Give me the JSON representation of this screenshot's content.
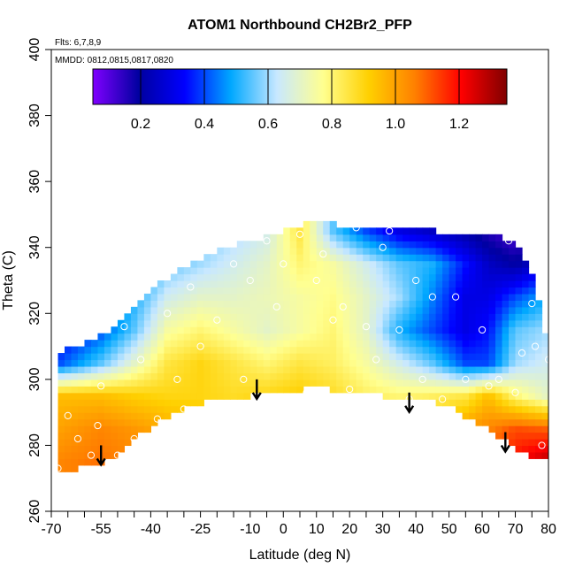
{
  "header": {
    "title": "ATOM1 Northbound CH2Br2_PFP",
    "flights": "Flts: 6,7,8,9",
    "dates": "MMDD: 0812,0815,0817,0820"
  },
  "colorbar": {
    "ticks": [
      "0.2",
      "0.4",
      "0.6",
      "0.8",
      "1.0",
      "1.2"
    ],
    "stops": [
      "#8000ff",
      "#0000a0",
      "#0000ff",
      "#00a8ff",
      "#c8e8ff",
      "#ffff90",
      "#ffd000",
      "#ff8000",
      "#ff0000",
      "#800000"
    ]
  },
  "chart_data": {
    "type": "heatmap",
    "title": "ATOM1 Northbound CH2Br2_PFP",
    "xlabel": "Latitude (deg N)",
    "ylabel": "Theta (C)",
    "xlim": [
      -70,
      80
    ],
    "ylim": [
      260,
      400
    ],
    "xticks": [
      "-70",
      "-55",
      "-40",
      "-25",
      "-10",
      "0",
      "10",
      "20",
      "30",
      "40",
      "50",
      "60",
      "70",
      "80"
    ],
    "yticks": [
      "260",
      "280",
      "300",
      "320",
      "340",
      "360",
      "380",
      "400"
    ],
    "color_range": [
      0.05,
      1.35
    ],
    "lower_boundary": [
      [
        -68,
        273
      ],
      [
        -62,
        273
      ],
      [
        -55,
        275
      ],
      [
        -50,
        277
      ],
      [
        -45,
        282
      ],
      [
        -38,
        287
      ],
      [
        -30,
        291
      ],
      [
        -20,
        294
      ],
      [
        -10,
        295
      ],
      [
        0,
        296
      ],
      [
        10,
        298
      ],
      [
        20,
        296
      ],
      [
        30,
        295
      ],
      [
        40,
        295
      ],
      [
        50,
        292
      ],
      [
        60,
        286
      ],
      [
        70,
        279
      ],
      [
        75,
        277
      ],
      [
        80,
        277
      ]
    ],
    "upper_boundary": [
      [
        -68,
        308
      ],
      [
        -60,
        311
      ],
      [
        -50,
        316
      ],
      [
        -45,
        321
      ],
      [
        -40,
        327
      ],
      [
        -30,
        334
      ],
      [
        -20,
        339
      ],
      [
        -10,
        342
      ],
      [
        0,
        345
      ],
      [
        10,
        348
      ],
      [
        20,
        346
      ],
      [
        30,
        346
      ],
      [
        40,
        346
      ],
      [
        50,
        344
      ],
      [
        60,
        344
      ],
      [
        70,
        342
      ],
      [
        75,
        332
      ],
      [
        78,
        320
      ],
      [
        80,
        306
      ]
    ],
    "grid_values": {
      "x": [
        -68,
        -55,
        -45,
        -35,
        -25,
        -15,
        -5,
        5,
        15,
        25,
        35,
        45,
        55,
        62,
        70,
        80
      ],
      "y": [
        275,
        285,
        295,
        305,
        315,
        325,
        335,
        345
      ],
      "z": [
        [
          1.05,
          1.08,
          1.05,
          1.0,
          0.98,
          0.95,
          0.95,
          0.95,
          0.95,
          0.95,
          0.95,
          0.98,
          1.05,
          1.1,
          1.2,
          1.3
        ],
        [
          1.0,
          1.05,
          1.02,
          0.98,
          0.95,
          0.92,
          0.92,
          0.92,
          0.92,
          0.9,
          0.9,
          0.95,
          1.02,
          1.05,
          1.12,
          1.1
        ],
        [
          0.95,
          0.95,
          0.92,
          0.9,
          0.9,
          0.88,
          0.9,
          0.92,
          0.88,
          0.82,
          0.8,
          0.82,
          0.85,
          0.95,
          0.8,
          0.7
        ],
        [
          0.4,
          0.55,
          0.7,
          0.85,
          0.9,
          0.85,
          0.8,
          0.85,
          0.82,
          0.75,
          0.65,
          0.55,
          0.4,
          0.4,
          0.6,
          0.65
        ],
        [
          0.3,
          0.4,
          0.55,
          0.75,
          0.8,
          0.75,
          0.7,
          0.75,
          0.8,
          0.7,
          0.5,
          0.4,
          0.3,
          0.35,
          0.55,
          0.6
        ],
        [
          0.25,
          0.35,
          0.5,
          0.65,
          0.7,
          0.7,
          0.72,
          0.75,
          0.78,
          0.7,
          0.6,
          0.45,
          0.3,
          0.3,
          0.4,
          0.5
        ],
        [
          0.2,
          0.3,
          0.45,
          0.55,
          0.6,
          0.65,
          0.7,
          0.8,
          0.75,
          0.65,
          0.55,
          0.5,
          0.35,
          0.25,
          0.2,
          0.3
        ],
        [
          0.2,
          0.3,
          0.4,
          0.5,
          0.55,
          0.6,
          0.65,
          0.85,
          0.55,
          0.4,
          0.3,
          0.25,
          0.2,
          0.15,
          0.1,
          0.2
        ]
      ]
    },
    "sample_points": [
      [
        -68,
        273
      ],
      [
        -65,
        289
      ],
      [
        -62,
        282
      ],
      [
        -58,
        277
      ],
      [
        -56,
        286
      ],
      [
        -55,
        298
      ],
      [
        -50,
        277
      ],
      [
        -48,
        316
      ],
      [
        -45,
        282
      ],
      [
        -43,
        306
      ],
      [
        -38,
        288
      ],
      [
        -35,
        320
      ],
      [
        -32,
        300
      ],
      [
        -30,
        291
      ],
      [
        -28,
        328
      ],
      [
        -25,
        310
      ],
      [
        -20,
        318
      ],
      [
        -15,
        335
      ],
      [
        -12,
        300
      ],
      [
        -10,
        330
      ],
      [
        -5,
        342
      ],
      [
        -2,
        322
      ],
      [
        0,
        335
      ],
      [
        5,
        344
      ],
      [
        7,
        296
      ],
      [
        10,
        330
      ],
      [
        12,
        338
      ],
      [
        15,
        318
      ],
      [
        18,
        322
      ],
      [
        20,
        297
      ],
      [
        22,
        346
      ],
      [
        25,
        316
      ],
      [
        28,
        306
      ],
      [
        30,
        340
      ],
      [
        32,
        345
      ],
      [
        35,
        315
      ],
      [
        38,
        294
      ],
      [
        40,
        330
      ],
      [
        42,
        300
      ],
      [
        45,
        325
      ],
      [
        48,
        294
      ],
      [
        52,
        325
      ],
      [
        55,
        300
      ],
      [
        60,
        315
      ],
      [
        62,
        298
      ],
      [
        65,
        300
      ],
      [
        68,
        342
      ],
      [
        70,
        296
      ],
      [
        72,
        308
      ],
      [
        75,
        323
      ],
      [
        76,
        310
      ],
      [
        78,
        280
      ],
      [
        80,
        306
      ]
    ],
    "annotations": [
      {
        "type": "arrow-down",
        "x": -55,
        "y": 280
      },
      {
        "type": "arrow-down",
        "x": -8,
        "y": 300
      },
      {
        "type": "arrow-down",
        "x": 38,
        "y": 296
      },
      {
        "type": "arrow-down",
        "x": 67,
        "y": 284
      }
    ]
  }
}
